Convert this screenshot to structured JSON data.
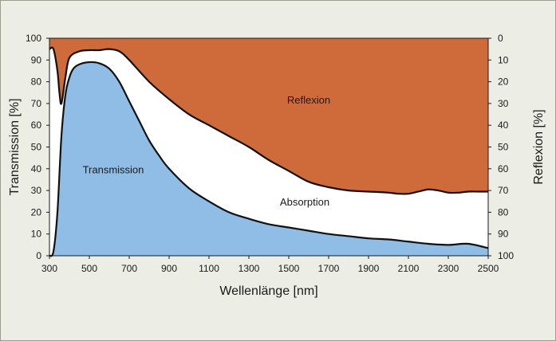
{
  "chart_data": {
    "type": "area",
    "xlabel": "Wellenlänge [nm]",
    "ylabel_left": "Transmission [%]",
    "ylabel_right": "Reflexion [%]",
    "xlim": [
      300,
      2500
    ],
    "ylim_left": [
      0,
      100
    ],
    "ylim_right": [
      100,
      0
    ],
    "x_ticks": [
      300,
      500,
      700,
      900,
      1100,
      1300,
      1500,
      1700,
      1900,
      2100,
      2300,
      2500
    ],
    "y_ticks_left": [
      0,
      10,
      20,
      30,
      40,
      50,
      60,
      70,
      80,
      90,
      100
    ],
    "y_ticks_right": [
      100,
      90,
      80,
      70,
      60,
      50,
      40,
      30,
      20,
      10,
      0
    ],
    "grid": false,
    "region_labels": {
      "transmission": "Transmission",
      "absorption": "Absorption",
      "reflexion": "Reflexion"
    },
    "colors": {
      "transmission": "#8fbde6",
      "absorption": "#ffffff",
      "reflexion": "#cf6a3a"
    },
    "series": [
      {
        "name": "Transmission",
        "x": [
          300,
          320,
          340,
          360,
          380,
          400,
          420,
          450,
          500,
          550,
          600,
          650,
          700,
          750,
          800,
          850,
          900,
          1000,
          1100,
          1200,
          1300,
          1400,
          1500,
          1600,
          1700,
          1800,
          1900,
          2000,
          2100,
          2200,
          2300,
          2400,
          2500
        ],
        "y": [
          0,
          2,
          20,
          55,
          74,
          82,
          86,
          88,
          89,
          88.5,
          86,
          80,
          71,
          62,
          53,
          46,
          40,
          31,
          25,
          20,
          17,
          14.5,
          13,
          11.5,
          10,
          9,
          8,
          7.5,
          6.5,
          5.5,
          5,
          5.5,
          3.5
        ]
      },
      {
        "name": "Reflexion",
        "x": [
          300,
          320,
          340,
          350,
          360,
          380,
          400,
          450,
          500,
          550,
          600,
          650,
          700,
          800,
          900,
          1000,
          1100,
          1200,
          1300,
          1400,
          1500,
          1600,
          1700,
          1800,
          1900,
          2000,
          2050,
          2100,
          2150,
          2200,
          2250,
          2300,
          2350,
          2400,
          2450,
          2500
        ],
        "y": [
          5,
          5,
          15,
          25,
          30,
          18,
          9,
          6,
          5.5,
          5.5,
          5,
          6,
          10,
          20,
          28,
          35,
          40,
          45,
          50,
          56,
          61,
          66,
          68.5,
          70,
          70.5,
          71,
          71.5,
          71.5,
          70.5,
          69.5,
          70,
          71,
          71,
          70.5,
          70.5,
          70.5
        ]
      }
    ]
  }
}
